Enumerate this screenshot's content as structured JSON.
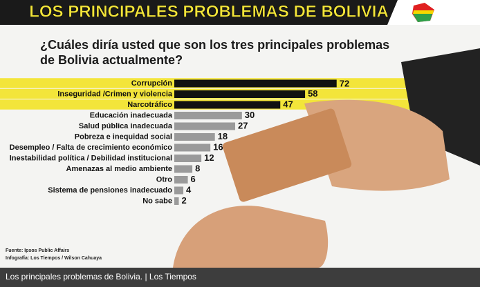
{
  "chart_data": {
    "type": "bar",
    "title": "LOS PRINCIPALES PROBLEMAS DE BOLIVIA",
    "subtitle_lines": [
      "¿Cuáles diría usted que son los tres principales problemas",
      "de Bolivia actualmente?"
    ],
    "categories": [
      "Corrupción",
      "Inseguridad /Crimen y violencia",
      "Narcotráfico",
      "Educación inadecuada",
      "Salud pública inadecuada",
      "Pobreza e inequidad social",
      "Desempleo / Falta de crecimiento económico",
      "Inestabilidad política / Debilidad institucional",
      "Amenazas al medio ambiente",
      "Otro",
      "Sistema de pensiones inadecuado",
      "No sabe"
    ],
    "values": [
      72,
      58,
      47,
      30,
      27,
      18,
      16,
      12,
      8,
      6,
      4,
      2
    ],
    "bar_colors": [
      "#111111",
      "#111111",
      "#111111",
      "#9a9a9a",
      "#9a9a9a",
      "#9a9a9a",
      "#9a9a9a",
      "#9a9a9a",
      "#9a9a9a",
      "#9a9a9a",
      "#9a9a9a",
      "#9a9a9a"
    ],
    "highlight": [
      true,
      true,
      true,
      false,
      false,
      false,
      false,
      false,
      false,
      false,
      false,
      false
    ],
    "highlight_color": "#f3e53a",
    "sources": [
      "Fuente: Ipsos Public Affairs",
      "Infografía: Los Tiempos / Wilson Cahuaya"
    ],
    "caption": "Los principales problemas de Bolivia. | Los Tiempos"
  }
}
